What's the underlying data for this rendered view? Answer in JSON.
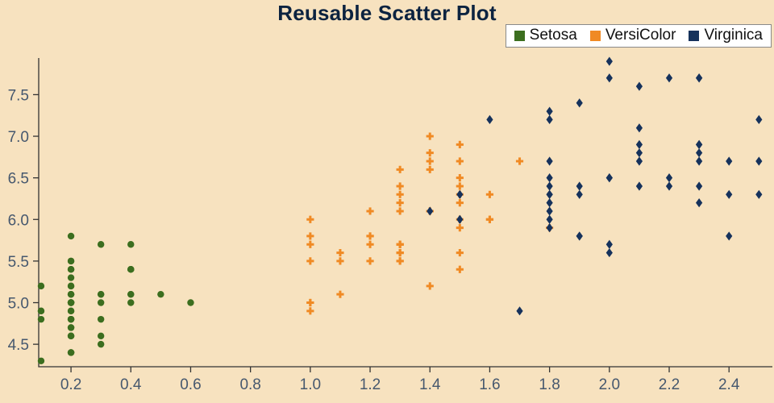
{
  "title": "Reusable Scatter Plot",
  "colors": {
    "background": "#f7e2bf",
    "axis": "#333333",
    "tick_label": "#46586e",
    "title": "#0c2340",
    "legend_border": "#8a8a8a",
    "legend_background": "#ffffff"
  },
  "legend": {
    "items": [
      {
        "label": "Setosa",
        "color": "#3c6e1f",
        "marker": "circle"
      },
      {
        "label": "VersiColor",
        "color": "#f08a24",
        "marker": "plus"
      },
      {
        "label": "Virginica",
        "color": "#16325c",
        "marker": "diamond"
      }
    ]
  },
  "chart_data": {
    "type": "scatter",
    "title": "Reusable Scatter Plot",
    "xlabel": "",
    "ylabel": "",
    "grid": false,
    "legend_position": "top-right",
    "x_domain": [
      0.092,
      2.545
    ],
    "y_domain": [
      4.23,
      7.94
    ],
    "x_ticks": [
      0.2,
      0.4,
      0.6,
      0.8,
      1.0,
      1.2,
      1.4,
      1.6,
      1.8,
      2.0,
      2.2,
      2.4
    ],
    "y_ticks": [
      4.5,
      5.0,
      5.5,
      6.0,
      6.5,
      7.0,
      7.5
    ],
    "series": [
      {
        "name": "Setosa",
        "marker": "circle",
        "color": "#3c6e1f",
        "points": [
          [
            0.2,
            5.1
          ],
          [
            0.2,
            4.9
          ],
          [
            0.2,
            4.7
          ],
          [
            0.2,
            4.6
          ],
          [
            0.2,
            5.0
          ],
          [
            0.4,
            5.4
          ],
          [
            0.3,
            4.6
          ],
          [
            0.2,
            5.0
          ],
          [
            0.2,
            4.4
          ],
          [
            0.1,
            4.9
          ],
          [
            0.2,
            5.4
          ],
          [
            0.2,
            4.8
          ],
          [
            0.1,
            4.8
          ],
          [
            0.1,
            4.3
          ],
          [
            0.2,
            5.8
          ],
          [
            0.4,
            5.7
          ],
          [
            0.4,
            5.4
          ],
          [
            0.3,
            5.1
          ],
          [
            0.3,
            5.7
          ],
          [
            0.3,
            5.1
          ],
          [
            0.2,
            5.4
          ],
          [
            0.4,
            5.1
          ],
          [
            0.2,
            4.6
          ],
          [
            0.5,
            5.1
          ],
          [
            0.2,
            4.8
          ],
          [
            0.2,
            5.0
          ],
          [
            0.4,
            5.0
          ],
          [
            0.2,
            5.2
          ],
          [
            0.2,
            5.2
          ],
          [
            0.2,
            4.7
          ],
          [
            0.2,
            4.8
          ],
          [
            0.4,
            5.4
          ],
          [
            0.1,
            5.2
          ],
          [
            0.2,
            5.5
          ],
          [
            0.2,
            4.9
          ],
          [
            0.2,
            5.0
          ],
          [
            0.2,
            5.5
          ],
          [
            0.1,
            4.9
          ],
          [
            0.2,
            4.4
          ],
          [
            0.2,
            5.1
          ],
          [
            0.3,
            5.0
          ],
          [
            0.3,
            4.5
          ],
          [
            0.2,
            4.4
          ],
          [
            0.6,
            5.0
          ],
          [
            0.4,
            5.1
          ],
          [
            0.3,
            4.8
          ],
          [
            0.2,
            5.1
          ],
          [
            0.2,
            4.6
          ],
          [
            0.2,
            5.3
          ],
          [
            0.2,
            5.0
          ]
        ]
      },
      {
        "name": "VersiColor",
        "marker": "plus",
        "color": "#f08a24",
        "points": [
          [
            1.4,
            7.0
          ],
          [
            1.5,
            6.4
          ],
          [
            1.5,
            6.9
          ],
          [
            1.3,
            5.5
          ],
          [
            1.5,
            6.5
          ],
          [
            1.3,
            5.7
          ],
          [
            1.6,
            6.3
          ],
          [
            1.0,
            4.9
          ],
          [
            1.3,
            6.6
          ],
          [
            1.4,
            5.2
          ],
          [
            1.0,
            5.0
          ],
          [
            1.5,
            5.9
          ],
          [
            1.0,
            6.0
          ],
          [
            1.4,
            6.1
          ],
          [
            1.3,
            5.6
          ],
          [
            1.4,
            6.7
          ],
          [
            1.5,
            5.6
          ],
          [
            1.0,
            5.8
          ],
          [
            1.5,
            6.2
          ],
          [
            1.1,
            5.6
          ],
          [
            1.8,
            5.9
          ],
          [
            1.3,
            6.1
          ],
          [
            1.5,
            6.3
          ],
          [
            1.2,
            6.1
          ],
          [
            1.3,
            6.4
          ],
          [
            1.4,
            6.6
          ],
          [
            1.4,
            6.8
          ],
          [
            1.7,
            6.7
          ],
          [
            1.5,
            6.0
          ],
          [
            1.0,
            5.7
          ],
          [
            1.1,
            5.5
          ],
          [
            1.0,
            5.5
          ],
          [
            1.2,
            5.8
          ],
          [
            1.6,
            6.0
          ],
          [
            1.5,
            5.4
          ],
          [
            1.6,
            6.0
          ],
          [
            1.5,
            6.7
          ],
          [
            1.3,
            6.3
          ],
          [
            1.3,
            5.6
          ],
          [
            1.3,
            5.5
          ],
          [
            1.2,
            5.5
          ],
          [
            1.4,
            6.1
          ],
          [
            1.2,
            5.8
          ],
          [
            1.0,
            5.0
          ],
          [
            1.3,
            5.6
          ],
          [
            1.2,
            5.7
          ],
          [
            1.3,
            5.7
          ],
          [
            1.3,
            6.2
          ],
          [
            1.1,
            5.1
          ],
          [
            1.3,
            5.7
          ]
        ]
      },
      {
        "name": "Virginica",
        "marker": "diamond",
        "color": "#16325c",
        "points": [
          [
            2.5,
            6.3
          ],
          [
            1.9,
            5.8
          ],
          [
            2.1,
            7.1
          ],
          [
            1.8,
            6.3
          ],
          [
            2.2,
            6.5
          ],
          [
            2.1,
            7.6
          ],
          [
            1.7,
            4.9
          ],
          [
            1.8,
            7.3
          ],
          [
            1.8,
            6.7
          ],
          [
            2.5,
            7.2
          ],
          [
            2.0,
            6.5
          ],
          [
            1.9,
            6.4
          ],
          [
            2.1,
            6.8
          ],
          [
            2.0,
            5.7
          ],
          [
            2.4,
            5.8
          ],
          [
            2.3,
            6.4
          ],
          [
            1.8,
            6.5
          ],
          [
            2.2,
            7.7
          ],
          [
            2.3,
            7.7
          ],
          [
            1.5,
            6.0
          ],
          [
            2.3,
            6.9
          ],
          [
            2.0,
            5.6
          ],
          [
            2.0,
            7.7
          ],
          [
            1.8,
            6.3
          ],
          [
            2.1,
            6.7
          ],
          [
            1.8,
            7.2
          ],
          [
            1.8,
            6.2
          ],
          [
            1.8,
            6.1
          ],
          [
            2.1,
            6.4
          ],
          [
            1.6,
            7.2
          ],
          [
            1.9,
            7.4
          ],
          [
            2.0,
            7.9
          ],
          [
            2.2,
            6.4
          ],
          [
            1.5,
            6.3
          ],
          [
            1.4,
            6.1
          ],
          [
            2.3,
            7.7
          ],
          [
            2.4,
            6.3
          ],
          [
            1.8,
            6.4
          ],
          [
            1.8,
            6.0
          ],
          [
            2.1,
            6.9
          ],
          [
            2.4,
            6.7
          ],
          [
            2.3,
            6.9
          ],
          [
            1.9,
            5.8
          ],
          [
            2.3,
            6.8
          ],
          [
            2.5,
            6.7
          ],
          [
            2.3,
            6.7
          ],
          [
            1.9,
            6.3
          ],
          [
            2.0,
            6.5
          ],
          [
            2.3,
            6.2
          ],
          [
            1.8,
            5.9
          ]
        ]
      }
    ]
  }
}
